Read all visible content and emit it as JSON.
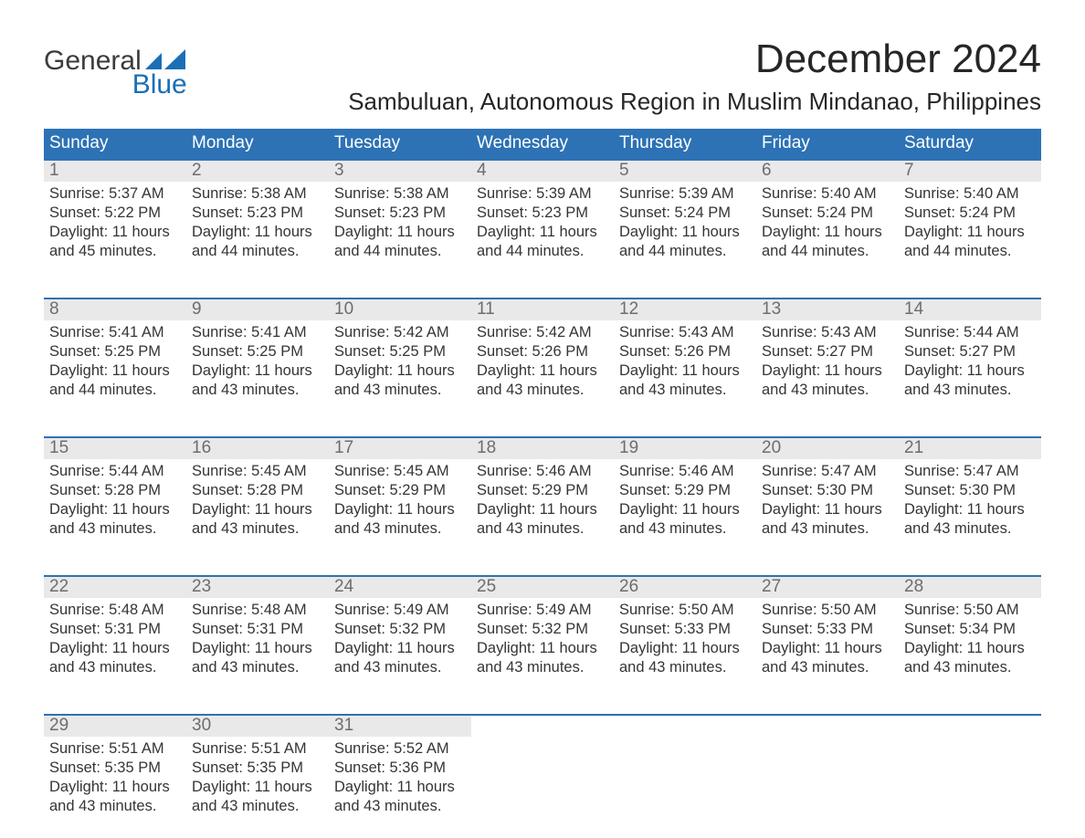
{
  "logo": {
    "top": "General",
    "bottom": "Blue",
    "mark_color": "#1a6fb5"
  },
  "header": {
    "month_title": "December 2024",
    "location": "Sambuluan, Autonomous Region in Muslim Mindanao, Philippines"
  },
  "calendar": {
    "weekday_bg": "#2d72b5",
    "weekday_fg": "#ffffff",
    "week_rule_color": "#2d72b5",
    "daynum_bg": "#e9e9e9",
    "daynum_fg": "#6d6d6d",
    "text_color": "#353535",
    "weekdays": [
      "Sunday",
      "Monday",
      "Tuesday",
      "Wednesday",
      "Thursday",
      "Friday",
      "Saturday"
    ],
    "weeks": [
      [
        {
          "n": "1",
          "sunrise": "Sunrise: 5:37 AM",
          "sunset": "Sunset: 5:22 PM",
          "d1": "Daylight: 11 hours",
          "d2": "and 45 minutes."
        },
        {
          "n": "2",
          "sunrise": "Sunrise: 5:38 AM",
          "sunset": "Sunset: 5:23 PM",
          "d1": "Daylight: 11 hours",
          "d2": "and 44 minutes."
        },
        {
          "n": "3",
          "sunrise": "Sunrise: 5:38 AM",
          "sunset": "Sunset: 5:23 PM",
          "d1": "Daylight: 11 hours",
          "d2": "and 44 minutes."
        },
        {
          "n": "4",
          "sunrise": "Sunrise: 5:39 AM",
          "sunset": "Sunset: 5:23 PM",
          "d1": "Daylight: 11 hours",
          "d2": "and 44 minutes."
        },
        {
          "n": "5",
          "sunrise": "Sunrise: 5:39 AM",
          "sunset": "Sunset: 5:24 PM",
          "d1": "Daylight: 11 hours",
          "d2": "and 44 minutes."
        },
        {
          "n": "6",
          "sunrise": "Sunrise: 5:40 AM",
          "sunset": "Sunset: 5:24 PM",
          "d1": "Daylight: 11 hours",
          "d2": "and 44 minutes."
        },
        {
          "n": "7",
          "sunrise": "Sunrise: 5:40 AM",
          "sunset": "Sunset: 5:24 PM",
          "d1": "Daylight: 11 hours",
          "d2": "and 44 minutes."
        }
      ],
      [
        {
          "n": "8",
          "sunrise": "Sunrise: 5:41 AM",
          "sunset": "Sunset: 5:25 PM",
          "d1": "Daylight: 11 hours",
          "d2": "and 44 minutes."
        },
        {
          "n": "9",
          "sunrise": "Sunrise: 5:41 AM",
          "sunset": "Sunset: 5:25 PM",
          "d1": "Daylight: 11 hours",
          "d2": "and 43 minutes."
        },
        {
          "n": "10",
          "sunrise": "Sunrise: 5:42 AM",
          "sunset": "Sunset: 5:25 PM",
          "d1": "Daylight: 11 hours",
          "d2": "and 43 minutes."
        },
        {
          "n": "11",
          "sunrise": "Sunrise: 5:42 AM",
          "sunset": "Sunset: 5:26 PM",
          "d1": "Daylight: 11 hours",
          "d2": "and 43 minutes."
        },
        {
          "n": "12",
          "sunrise": "Sunrise: 5:43 AM",
          "sunset": "Sunset: 5:26 PM",
          "d1": "Daylight: 11 hours",
          "d2": "and 43 minutes."
        },
        {
          "n": "13",
          "sunrise": "Sunrise: 5:43 AM",
          "sunset": "Sunset: 5:27 PM",
          "d1": "Daylight: 11 hours",
          "d2": "and 43 minutes."
        },
        {
          "n": "14",
          "sunrise": "Sunrise: 5:44 AM",
          "sunset": "Sunset: 5:27 PM",
          "d1": "Daylight: 11 hours",
          "d2": "and 43 minutes."
        }
      ],
      [
        {
          "n": "15",
          "sunrise": "Sunrise: 5:44 AM",
          "sunset": "Sunset: 5:28 PM",
          "d1": "Daylight: 11 hours",
          "d2": "and 43 minutes."
        },
        {
          "n": "16",
          "sunrise": "Sunrise: 5:45 AM",
          "sunset": "Sunset: 5:28 PM",
          "d1": "Daylight: 11 hours",
          "d2": "and 43 minutes."
        },
        {
          "n": "17",
          "sunrise": "Sunrise: 5:45 AM",
          "sunset": "Sunset: 5:29 PM",
          "d1": "Daylight: 11 hours",
          "d2": "and 43 minutes."
        },
        {
          "n": "18",
          "sunrise": "Sunrise: 5:46 AM",
          "sunset": "Sunset: 5:29 PM",
          "d1": "Daylight: 11 hours",
          "d2": "and 43 minutes."
        },
        {
          "n": "19",
          "sunrise": "Sunrise: 5:46 AM",
          "sunset": "Sunset: 5:29 PM",
          "d1": "Daylight: 11 hours",
          "d2": "and 43 minutes."
        },
        {
          "n": "20",
          "sunrise": "Sunrise: 5:47 AM",
          "sunset": "Sunset: 5:30 PM",
          "d1": "Daylight: 11 hours",
          "d2": "and 43 minutes."
        },
        {
          "n": "21",
          "sunrise": "Sunrise: 5:47 AM",
          "sunset": "Sunset: 5:30 PM",
          "d1": "Daylight: 11 hours",
          "d2": "and 43 minutes."
        }
      ],
      [
        {
          "n": "22",
          "sunrise": "Sunrise: 5:48 AM",
          "sunset": "Sunset: 5:31 PM",
          "d1": "Daylight: 11 hours",
          "d2": "and 43 minutes."
        },
        {
          "n": "23",
          "sunrise": "Sunrise: 5:48 AM",
          "sunset": "Sunset: 5:31 PM",
          "d1": "Daylight: 11 hours",
          "d2": "and 43 minutes."
        },
        {
          "n": "24",
          "sunrise": "Sunrise: 5:49 AM",
          "sunset": "Sunset: 5:32 PM",
          "d1": "Daylight: 11 hours",
          "d2": "and 43 minutes."
        },
        {
          "n": "25",
          "sunrise": "Sunrise: 5:49 AM",
          "sunset": "Sunset: 5:32 PM",
          "d1": "Daylight: 11 hours",
          "d2": "and 43 minutes."
        },
        {
          "n": "26",
          "sunrise": "Sunrise: 5:50 AM",
          "sunset": "Sunset: 5:33 PM",
          "d1": "Daylight: 11 hours",
          "d2": "and 43 minutes."
        },
        {
          "n": "27",
          "sunrise": "Sunrise: 5:50 AM",
          "sunset": "Sunset: 5:33 PM",
          "d1": "Daylight: 11 hours",
          "d2": "and 43 minutes."
        },
        {
          "n": "28",
          "sunrise": "Sunrise: 5:50 AM",
          "sunset": "Sunset: 5:34 PM",
          "d1": "Daylight: 11 hours",
          "d2": "and 43 minutes."
        }
      ],
      [
        {
          "n": "29",
          "sunrise": "Sunrise: 5:51 AM",
          "sunset": "Sunset: 5:35 PM",
          "d1": "Daylight: 11 hours",
          "d2": "and 43 minutes."
        },
        {
          "n": "30",
          "sunrise": "Sunrise: 5:51 AM",
          "sunset": "Sunset: 5:35 PM",
          "d1": "Daylight: 11 hours",
          "d2": "and 43 minutes."
        },
        {
          "n": "31",
          "sunrise": "Sunrise: 5:52 AM",
          "sunset": "Sunset: 5:36 PM",
          "d1": "Daylight: 11 hours",
          "d2": "and 43 minutes."
        },
        {
          "empty": true
        },
        {
          "empty": true
        },
        {
          "empty": true
        },
        {
          "empty": true
        }
      ]
    ]
  }
}
